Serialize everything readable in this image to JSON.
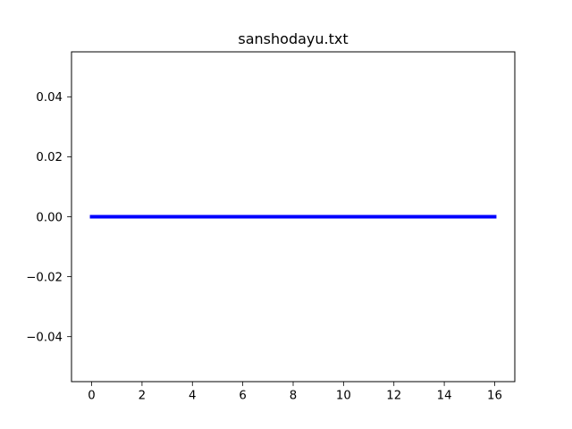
{
  "chart_data": {
    "type": "line",
    "title": "sanshodayu.txt",
    "xlabel": "",
    "ylabel": "",
    "xlim": [
      -0.8,
      16.8
    ],
    "ylim": [
      -0.055,
      0.055
    ],
    "x_ticks": [
      0,
      2,
      4,
      6,
      8,
      10,
      12,
      14,
      16
    ],
    "x_tick_labels": [
      "0",
      "2",
      "4",
      "6",
      "8",
      "10",
      "12",
      "14",
      "16"
    ],
    "y_ticks": [
      0.04,
      0.02,
      0.0,
      -0.02,
      -0.04
    ],
    "y_tick_labels": [
      "0.04",
      "0.02",
      "0.00",
      "−0.02",
      "−0.04"
    ],
    "grid": false,
    "series": [
      {
        "color": "#0000ff",
        "x": [
          0,
          16
        ],
        "y": [
          0,
          0
        ]
      }
    ]
  }
}
